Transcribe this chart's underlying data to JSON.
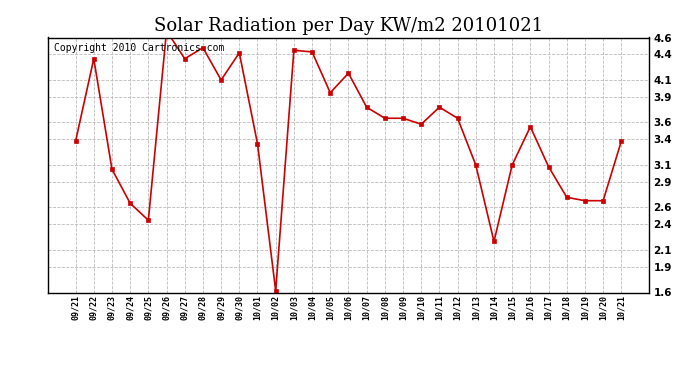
{
  "title": "Solar Radiation per Day KW/m2 20101021",
  "copyright": "Copyright 2010 Cartronics.com",
  "line_color": "#cc0000",
  "marker_color": "#cc0000",
  "bg_color": "#ffffff",
  "grid_color": "#bbbbbb",
  "labels": [
    "09/21",
    "09/22",
    "09/23",
    "09/24",
    "09/25",
    "09/26",
    "09/27",
    "09/28",
    "09/29",
    "09/30",
    "10/01",
    "10/02",
    "10/03",
    "10/04",
    "10/05",
    "10/06",
    "10/07",
    "10/08",
    "10/09",
    "10/10",
    "10/11",
    "10/12",
    "10/13",
    "10/14",
    "10/15",
    "10/16",
    "10/17",
    "10/18",
    "10/19",
    "10/20",
    "10/21"
  ],
  "values": [
    3.38,
    4.35,
    3.05,
    2.65,
    2.45,
    4.68,
    4.35,
    4.48,
    4.1,
    4.42,
    3.35,
    1.62,
    4.45,
    4.43,
    3.95,
    4.18,
    3.78,
    3.65,
    3.65,
    3.58,
    3.78,
    3.65,
    3.1,
    2.2,
    3.1,
    3.55,
    3.08,
    2.72,
    2.68,
    2.68,
    3.38
  ],
  "ylim": [
    1.6,
    4.6
  ],
  "yticks": [
    1.6,
    1.9,
    2.1,
    2.4,
    2.6,
    2.9,
    3.1,
    3.4,
    3.6,
    3.9,
    4.1,
    4.4,
    4.6
  ],
  "title_fontsize": 13,
  "copyright_fontsize": 7
}
